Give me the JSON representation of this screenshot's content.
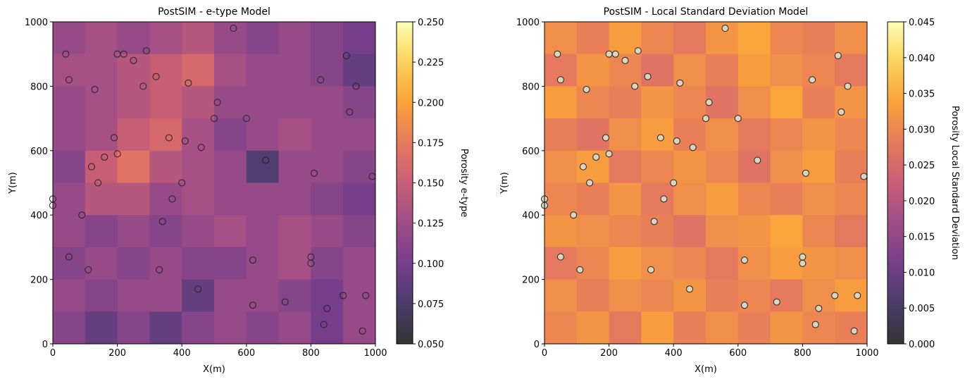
{
  "chart_data": [
    {
      "type": "heatmap",
      "title": "PostSIM - e-type Model",
      "x_label": "X(m)",
      "y_label": "Y(m)",
      "xlim": [
        0,
        1000
      ],
      "ylim": [
        0,
        1000
      ],
      "xticks": [
        0,
        200,
        400,
        600,
        800,
        1000
      ],
      "yticks": [
        0,
        200,
        400,
        600,
        800,
        1000
      ],
      "colormap": "inferno",
      "alpha": 0.8,
      "clim": [
        0.05,
        0.25
      ],
      "colorbar_label": "Porosity e-type",
      "cticks": [
        {
          "value": 0.05,
          "label": "0.050"
        },
        {
          "value": 0.075,
          "label": "0.075"
        },
        {
          "value": 0.1,
          "label": "0.100"
        },
        {
          "value": 0.125,
          "label": "0.125"
        },
        {
          "value": 0.15,
          "label": "0.150"
        },
        {
          "value": 0.175,
          "label": "0.175"
        },
        {
          "value": 0.2,
          "label": "0.200"
        },
        {
          "value": 0.225,
          "label": "0.225"
        },
        {
          "value": 0.25,
          "label": "0.250"
        }
      ],
      "z": [
        [
          0.12,
          0.13,
          0.12,
          0.13,
          0.14,
          0.12,
          0.11,
          0.12,
          0.11,
          0.1
        ],
        [
          0.13,
          0.13,
          0.14,
          0.15,
          0.16,
          0.13,
          0.12,
          0.12,
          0.11,
          0.09
        ],
        [
          0.12,
          0.13,
          0.14,
          0.15,
          0.14,
          0.12,
          0.12,
          0.12,
          0.12,
          0.11
        ],
        [
          0.12,
          0.13,
          0.15,
          0.16,
          0.13,
          0.11,
          0.12,
          0.13,
          0.12,
          0.12
        ],
        [
          0.11,
          0.15,
          0.17,
          0.14,
          0.13,
          0.12,
          0.08,
          0.12,
          0.12,
          0.11
        ],
        [
          0.12,
          0.14,
          0.14,
          0.12,
          0.13,
          0.12,
          0.12,
          0.12,
          0.11,
          0.1
        ],
        [
          0.12,
          0.11,
          0.12,
          0.11,
          0.12,
          0.13,
          0.12,
          0.13,
          0.12,
          0.11
        ],
        [
          0.11,
          0.12,
          0.11,
          0.12,
          0.11,
          0.11,
          0.12,
          0.13,
          0.11,
          0.12
        ],
        [
          0.12,
          0.11,
          0.12,
          0.12,
          0.09,
          0.12,
          0.12,
          0.11,
          0.1,
          0.12
        ],
        [
          0.11,
          0.09,
          0.11,
          0.09,
          0.11,
          0.12,
          0.11,
          0.12,
          0.1,
          0.12
        ]
      ],
      "point_fill": "none",
      "point_edge": "#222222",
      "points": {
        "x": [
          40,
          50,
          130,
          200,
          220,
          250,
          290,
          320,
          280,
          420,
          560,
          510,
          500,
          600,
          830,
          910,
          940,
          920,
          190,
          360,
          410,
          460,
          200,
          160,
          120,
          660,
          140,
          400,
          810,
          990,
          0,
          0,
          90,
          370,
          340,
          50,
          110,
          330,
          620,
          800,
          800,
          450,
          620,
          720,
          850,
          900,
          970,
          840,
          960
        ],
        "y": [
          900,
          820,
          790,
          900,
          900,
          880,
          910,
          830,
          800,
          810,
          980,
          750,
          700,
          700,
          820,
          895,
          800,
          720,
          640,
          640,
          630,
          610,
          590,
          580,
          550,
          570,
          500,
          500,
          530,
          520,
          450,
          430,
          400,
          450,
          380,
          270,
          230,
          230,
          260,
          270,
          250,
          170,
          120,
          130,
          110,
          150,
          150,
          60,
          40
        ]
      }
    },
    {
      "type": "heatmap",
      "title": "PostSIM - Local Standard Deviation Model",
      "x_label": "X(m)",
      "y_label": "Y(m)",
      "xlim": [
        0,
        1000
      ],
      "ylim": [
        0,
        1000
      ],
      "xticks": [
        0,
        200,
        400,
        600,
        800,
        1000
      ],
      "yticks": [
        0,
        200,
        400,
        600,
        800,
        1000
      ],
      "colormap": "inferno",
      "alpha": 0.8,
      "clim": [
        0,
        0.045
      ],
      "colorbar_label": "Porosity Local Standard Deviation",
      "cticks": [
        {
          "value": 0,
          "label": "0.000"
        },
        {
          "value": 0.005,
          "label": "0.005"
        },
        {
          "value": 0.01,
          "label": "0.010"
        },
        {
          "value": 0.015,
          "label": "0.015"
        },
        {
          "value": 0.02,
          "label": "0.020"
        },
        {
          "value": 0.025,
          "label": "0.025"
        },
        {
          "value": 0.03,
          "label": "0.030"
        },
        {
          "value": 0.035,
          "label": "0.035"
        },
        {
          "value": 0.04,
          "label": "0.040"
        },
        {
          "value": 0.045,
          "label": "0.045"
        }
      ],
      "z": [
        [
          0.031,
          0.029,
          0.033,
          0.03,
          0.028,
          0.032,
          0.034,
          0.03,
          0.029,
          0.031
        ],
        [
          0.028,
          0.032,
          0.03,
          0.027,
          0.031,
          0.029,
          0.033,
          0.031,
          0.03,
          0.028
        ],
        [
          0.033,
          0.03,
          0.029,
          0.032,
          0.03,
          0.027,
          0.031,
          0.034,
          0.029,
          0.032
        ],
        [
          0.029,
          0.027,
          0.031,
          0.033,
          0.029,
          0.031,
          0.028,
          0.03,
          0.032,
          0.03
        ],
        [
          0.031,
          0.033,
          0.028,
          0.03,
          0.032,
          0.03,
          0.027,
          0.031,
          0.033,
          0.029
        ],
        [
          0.03,
          0.029,
          0.032,
          0.028,
          0.031,
          0.033,
          0.03,
          0.029,
          0.031,
          0.03
        ],
        [
          0.032,
          0.031,
          0.03,
          0.029,
          0.027,
          0.031,
          0.032,
          0.034,
          0.03,
          0.028
        ],
        [
          0.028,
          0.03,
          0.033,
          0.031,
          0.03,
          0.028,
          0.031,
          0.033,
          0.032,
          0.031
        ],
        [
          0.031,
          0.029,
          0.031,
          0.03,
          0.032,
          0.029,
          0.03,
          0.028,
          0.031,
          0.033
        ],
        [
          0.03,
          0.032,
          0.028,
          0.033,
          0.029,
          0.031,
          0.029,
          0.032,
          0.03,
          0.029
        ]
      ],
      "point_fill": "#d8d6c0",
      "point_edge": "#222222",
      "points": {
        "x": [
          40,
          50,
          130,
          200,
          220,
          250,
          290,
          320,
          280,
          420,
          560,
          510,
          500,
          600,
          830,
          910,
          940,
          920,
          190,
          360,
          410,
          460,
          200,
          160,
          120,
          660,
          140,
          400,
          810,
          990,
          0,
          0,
          90,
          370,
          340,
          50,
          110,
          330,
          620,
          800,
          800,
          450,
          620,
          720,
          850,
          900,
          970,
          840,
          960
        ],
        "y": [
          900,
          820,
          790,
          900,
          900,
          880,
          910,
          830,
          800,
          810,
          980,
          750,
          700,
          700,
          820,
          895,
          800,
          720,
          640,
          640,
          630,
          610,
          590,
          580,
          550,
          570,
          500,
          500,
          530,
          520,
          450,
          430,
          400,
          450,
          380,
          270,
          230,
          230,
          260,
          270,
          250,
          170,
          120,
          130,
          110,
          150,
          150,
          60,
          40
        ]
      }
    }
  ]
}
